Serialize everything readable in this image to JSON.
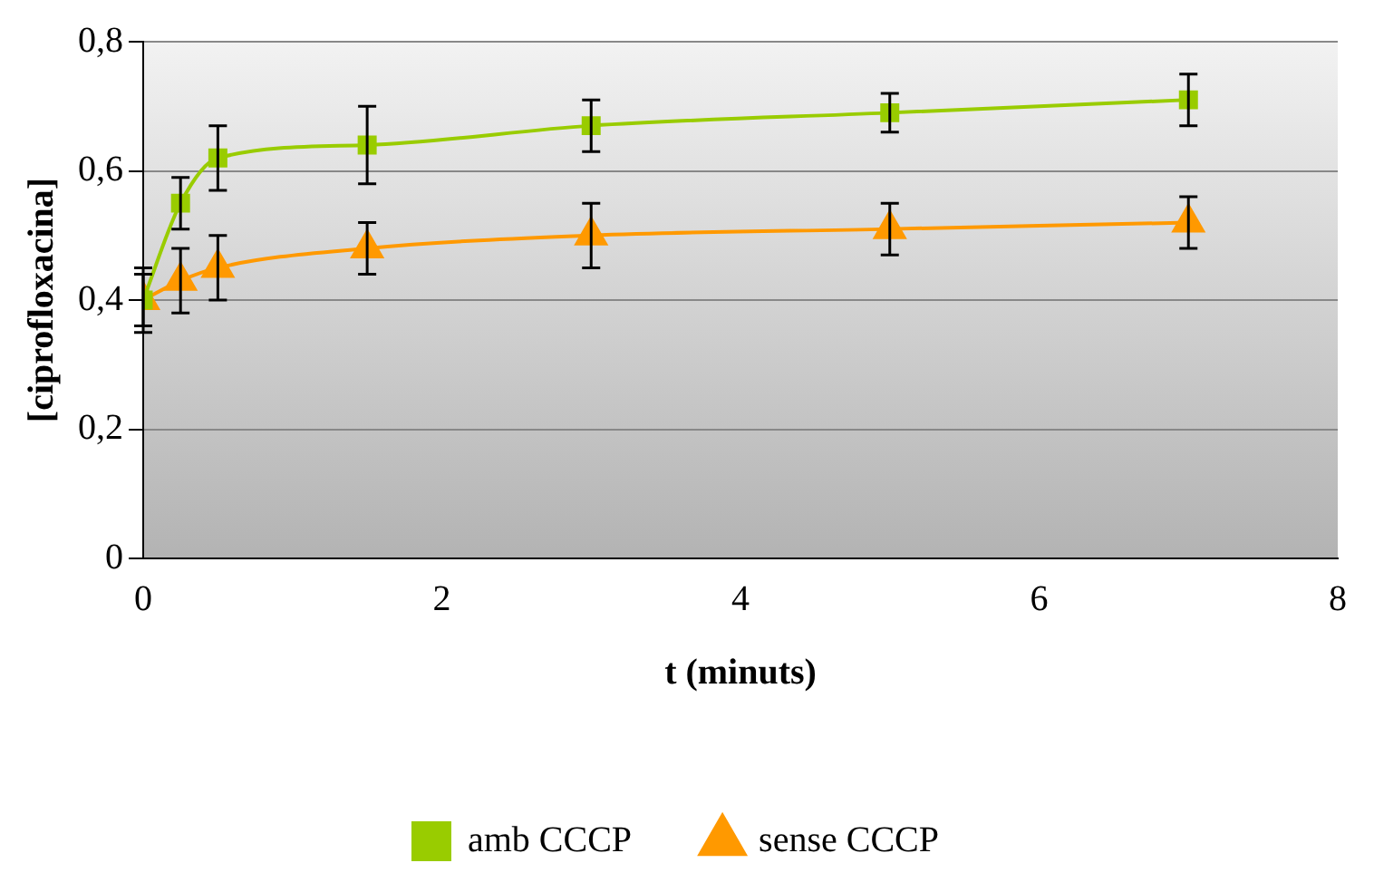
{
  "chart_data": {
    "type": "line",
    "xlabel": "t (minuts)",
    "ylabel": "[ciprofloxacina]",
    "xlim": [
      0,
      8
    ],
    "xticks": [
      0,
      2,
      4,
      6,
      8
    ],
    "ylim": [
      0,
      0.8
    ],
    "yticks": [
      {
        "value": 0,
        "label": "0"
      },
      {
        "value": 0.2,
        "label": "0,2"
      },
      {
        "value": 0.4,
        "label": "0,4"
      },
      {
        "value": 0.6,
        "label": "0,6"
      },
      {
        "value": 0.8,
        "label": "0,8"
      }
    ],
    "grid": "y",
    "legend": "bottom",
    "series": [
      {
        "name": "amb CCCP",
        "color": "#99cc00",
        "marker": "square",
        "x": [
          0,
          0.25,
          0.5,
          1.5,
          3,
          5,
          7
        ],
        "values": [
          0.4,
          0.55,
          0.62,
          0.64,
          0.67,
          0.69,
          0.71
        ],
        "errors": [
          0.05,
          0.04,
          0.05,
          0.06,
          0.04,
          0.03,
          0.04
        ]
      },
      {
        "name": "sense CCCP",
        "color": "#ff9900",
        "marker": "triangle",
        "x": [
          0,
          0.25,
          0.5,
          1.5,
          3,
          5,
          7
        ],
        "values": [
          0.4,
          0.43,
          0.45,
          0.48,
          0.5,
          0.51,
          0.52
        ],
        "errors": [
          0.04,
          0.05,
          0.05,
          0.04,
          0.05,
          0.04,
          0.04
        ]
      }
    ]
  }
}
